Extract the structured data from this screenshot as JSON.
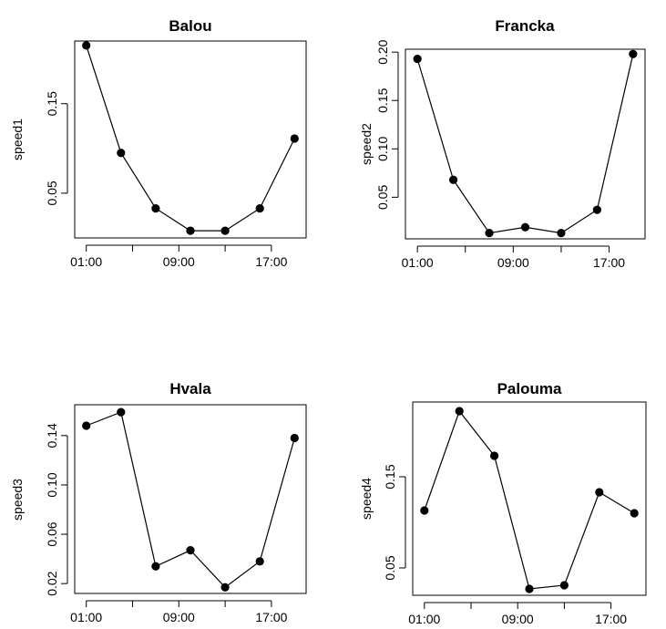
{
  "chart_data": [
    {
      "type": "line",
      "title": "Balou",
      "xlabel": "",
      "ylabel": "speed1",
      "x_tick_labels": [
        "01:00",
        "09:00",
        "17:00"
      ],
      "y_ticks": [
        0.05,
        0.15
      ],
      "y_tick_labels": [
        "0.05",
        "0.15"
      ],
      "x_hours": [
        0,
        3,
        6,
        9,
        12,
        15,
        18
      ],
      "values": [
        0.215,
        0.095,
        0.033,
        0.008,
        0.008,
        0.033,
        0.111
      ],
      "xlim": [
        -1,
        19
      ],
      "ylim": [
        0.0,
        0.22
      ]
    },
    {
      "type": "line",
      "title": "Francka",
      "xlabel": "",
      "ylabel": "speed2",
      "x_tick_labels": [
        "01:00",
        "09:00",
        "17:00"
      ],
      "y_ticks": [
        0.05,
        0.1,
        0.15,
        0.2
      ],
      "y_tick_labels": [
        "0.05",
        "0.10",
        "0.15",
        "0.20"
      ],
      "x_hours": [
        0,
        3,
        6,
        9,
        12,
        15,
        18
      ],
      "values": [
        0.193,
        0.068,
        0.013,
        0.019,
        0.013,
        0.037,
        0.198
      ],
      "xlim": [
        -1,
        19
      ],
      "ylim": [
        0.007,
        0.203
      ]
    },
    {
      "type": "line",
      "title": "Hvala",
      "xlabel": "",
      "ylabel": "speed3",
      "x_tick_labels": [
        "01:00",
        "09:00",
        "17:00"
      ],
      "y_ticks": [
        0.02,
        0.06,
        0.1,
        0.14
      ],
      "y_tick_labels": [
        "0.02",
        "0.06",
        "0.10",
        "0.14"
      ],
      "x_hours": [
        0,
        3,
        6,
        9,
        12,
        15,
        18
      ],
      "values": [
        0.148,
        0.159,
        0.034,
        0.047,
        0.017,
        0.038,
        0.138
      ],
      "xlim": [
        -1,
        19
      ],
      "ylim": [
        0.012,
        0.165
      ]
    },
    {
      "type": "line",
      "title": "Palouma",
      "xlabel": "",
      "ylabel": "speed4",
      "x_tick_labels": [
        "01:00",
        "09:00",
        "17:00"
      ],
      "y_ticks": [
        0.05,
        0.15
      ],
      "y_tick_labels": [
        "0.05",
        "0.15"
      ],
      "x_hours": [
        0,
        3,
        6,
        9,
        12,
        15,
        18
      ],
      "values": [
        0.113,
        0.222,
        0.173,
        0.027,
        0.031,
        0.133,
        0.11
      ],
      "xlim": [
        -1,
        19
      ],
      "ylim": [
        0.02,
        0.232
      ]
    }
  ]
}
